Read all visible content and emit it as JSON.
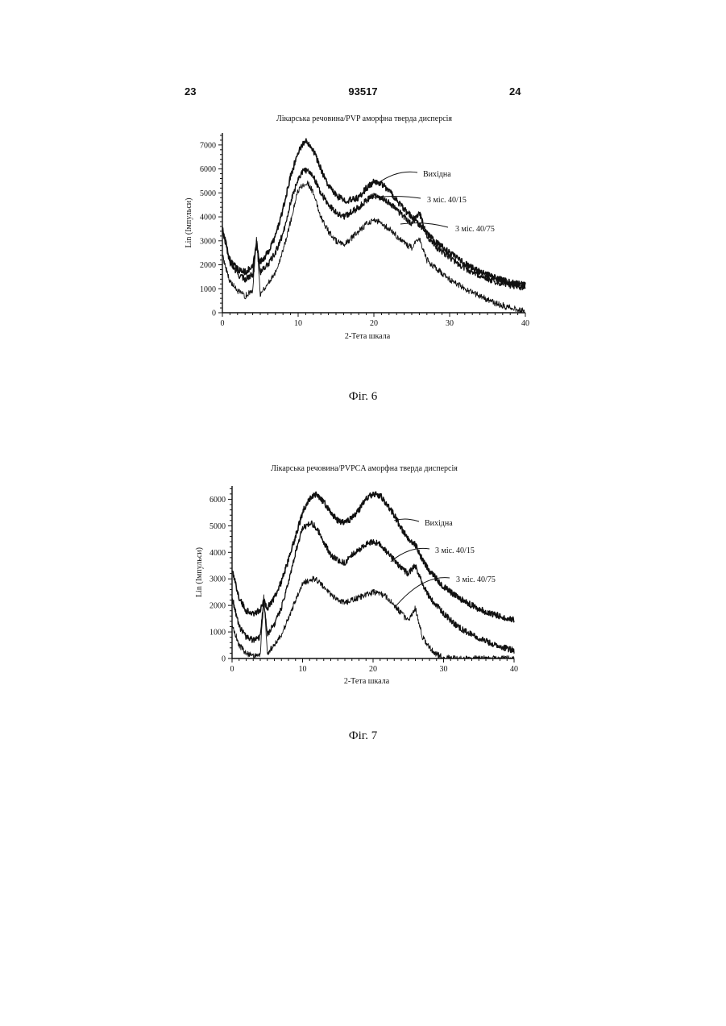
{
  "header": {
    "page_left": "23",
    "patent_number": "93517",
    "page_right": "24"
  },
  "chart_data": [
    {
      "type": "line",
      "title": "Лікарська речовина/PVP аморфна тверда дисперсія",
      "xlabel": "2-Тета шкала",
      "ylabel": "Lin (Імпульси)",
      "xlim": [
        0,
        40
      ],
      "ylim": [
        0,
        7500
      ],
      "xticks": [
        0,
        10,
        20,
        30,
        40
      ],
      "yticks": [
        0,
        1000,
        2000,
        3000,
        4000,
        5000,
        6000,
        7000
      ],
      "caption": "Фіг. 6",
      "series": [
        {
          "name": "Вихідна",
          "x": [
            0,
            1,
            2,
            3,
            4,
            4.5,
            5,
            6,
            7,
            8,
            9,
            10,
            10.5,
            11,
            11.5,
            12,
            13,
            14,
            15,
            16,
            17,
            18,
            19,
            20,
            21,
            22,
            23,
            24,
            25,
            26,
            27,
            28,
            30,
            32,
            34,
            36,
            38,
            40
          ],
          "y": [
            3500,
            2200,
            1800,
            1700,
            1900,
            2800,
            2100,
            2500,
            3200,
            4300,
            5700,
            6700,
            7000,
            7150,
            7050,
            6800,
            6000,
            5300,
            4900,
            4700,
            4700,
            4800,
            5200,
            5450,
            5400,
            5100,
            4700,
            4300,
            4000,
            3700,
            3400,
            3000,
            2500,
            2050,
            1700,
            1450,
            1250,
            1150
          ]
        },
        {
          "name": "3 міс. 40/15",
          "x": [
            0,
            1,
            2,
            3,
            4,
            4.5,
            5,
            6,
            7,
            8,
            9,
            10,
            10.5,
            11,
            11.5,
            12,
            13,
            14,
            15,
            16,
            17,
            18,
            19,
            20,
            21,
            22,
            23,
            24,
            25,
            26,
            27,
            28,
            30,
            32,
            34,
            36,
            38,
            40
          ],
          "y": [
            3400,
            2100,
            1600,
            1400,
            1600,
            3000,
            1700,
            2000,
            2500,
            3300,
            4600,
            5600,
            5850,
            5950,
            5900,
            5700,
            5000,
            4500,
            4200,
            4000,
            4200,
            4400,
            4700,
            4900,
            4800,
            4600,
            4300,
            4000,
            3700,
            4200,
            3200,
            2800,
            2300,
            1850,
            1550,
            1300,
            1150,
            1050
          ]
        },
        {
          "name": "3 міс. 40/75",
          "x": [
            0,
            1,
            2,
            3,
            4,
            4.5,
            5,
            6,
            7,
            8,
            9,
            10,
            10.5,
            11,
            11.5,
            12,
            13,
            14,
            15,
            16,
            17,
            18,
            19,
            20,
            21,
            22,
            23,
            24,
            25,
            26,
            27,
            28,
            30,
            32,
            34,
            36,
            38,
            40
          ],
          "y": [
            2400,
            1300,
            900,
            700,
            900,
            3200,
            800,
            1200,
            1700,
            2600,
            3800,
            5100,
            5300,
            5450,
            5300,
            5000,
            4000,
            3400,
            3000,
            2800,
            3100,
            3400,
            3700,
            3900,
            3700,
            3500,
            3200,
            2900,
            2700,
            3100,
            2200,
            1900,
            1400,
            1000,
            700,
            400,
            200,
            50
          ]
        }
      ],
      "annotations": [
        "Вихідна",
        "3 міс. 40/15",
        "3 міс. 40/75"
      ]
    },
    {
      "type": "line",
      "title": "Лікарська речовина/PVPCA аморфна тверда дисперсія",
      "xlabel": "2-Тета шкала",
      "ylabel": "Lin (Імпульси)",
      "xlim": [
        0,
        40
      ],
      "ylim": [
        0,
        6500
      ],
      "xticks": [
        0,
        10,
        20,
        30,
        40
      ],
      "yticks": [
        0,
        1000,
        2000,
        3000,
        4000,
        5000,
        6000
      ],
      "caption": "Фіг. 7",
      "series": [
        {
          "name": "Вихідна",
          "x": [
            0,
            1,
            2,
            3,
            4,
            4.5,
            5,
            6,
            7,
            8,
            9,
            10,
            10.5,
            11,
            11.5,
            12,
            13,
            14,
            15,
            16,
            17,
            18,
            19,
            20,
            21,
            22,
            23,
            24,
            25,
            26,
            27,
            28,
            30,
            32,
            34,
            36,
            38,
            40
          ],
          "y": [
            3300,
            2300,
            1800,
            1700,
            1800,
            2200,
            1900,
            2300,
            2900,
            3700,
            4600,
            5500,
            5800,
            6000,
            6150,
            6200,
            5900,
            5500,
            5200,
            5100,
            5300,
            5600,
            6000,
            6200,
            6150,
            5800,
            5400,
            4900,
            4500,
            4300,
            3700,
            3300,
            2700,
            2300,
            2000,
            1750,
            1600,
            1450
          ]
        },
        {
          "name": "3 міс. 40/15",
          "x": [
            0,
            1,
            2,
            3,
            4,
            4.5,
            5,
            6,
            7,
            8,
            9,
            10,
            10.5,
            11,
            11.5,
            12,
            13,
            14,
            15,
            16,
            17,
            18,
            19,
            20,
            21,
            22,
            23,
            24,
            25,
            26,
            27,
            28,
            30,
            32,
            34,
            36,
            38,
            40
          ],
          "y": [
            2300,
            1200,
            800,
            700,
            800,
            2200,
            900,
            1300,
            1900,
            2900,
            4000,
            4900,
            5000,
            5100,
            5050,
            4900,
            4400,
            3900,
            3700,
            3600,
            3900,
            4100,
            4300,
            4400,
            4300,
            4000,
            3700,
            3400,
            3200,
            3500,
            2800,
            2300,
            1700,
            1200,
            900,
            650,
            450,
            300
          ]
        },
        {
          "name": "3 міс. 40/75",
          "x": [
            0,
            1,
            2,
            3,
            4,
            4.5,
            5,
            6,
            7,
            8,
            9,
            10,
            10.5,
            11,
            11.5,
            12,
            13,
            14,
            15,
            16,
            17,
            18,
            19,
            20,
            21,
            22,
            23,
            24,
            25,
            26,
            27,
            28,
            29,
            30,
            31,
            32,
            34,
            36,
            38,
            40
          ],
          "y": [
            1300,
            500,
            200,
            100,
            150,
            2300,
            200,
            500,
            900,
            1500,
            2200,
            2800,
            2900,
            2950,
            3000,
            2950,
            2700,
            2400,
            2200,
            2100,
            2200,
            2300,
            2400,
            2500,
            2450,
            2300,
            2000,
            1700,
            1400,
            1900,
            800,
            400,
            150,
            50,
            0,
            0,
            0,
            0,
            0,
            0
          ]
        }
      ],
      "annotations": [
        "Вихідна",
        "3 міс. 40/15",
        "3 міс. 40/75"
      ]
    }
  ]
}
